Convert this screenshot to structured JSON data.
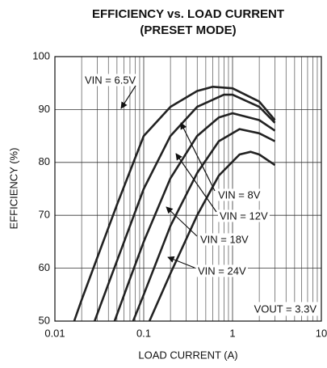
{
  "chart_data": {
    "type": "line",
    "title": "EFFICIENCY vs. LOAD CURRENT",
    "subtitle": "(PRESET MODE)",
    "x_label": "LOAD CURRENT (A)",
    "y_label": "EFFICIENCY (%)",
    "x_log": true,
    "xlim": [
      0.01,
      10
    ],
    "xticks": [
      0.01,
      0.1,
      1,
      10
    ],
    "ylim": [
      50,
      100
    ],
    "yticks": [
      50,
      60,
      70,
      80,
      90,
      100
    ],
    "grid": true,
    "series": [
      {
        "name": "VIN = 6.5V",
        "color": "#222222",
        "x": [
          0.0165,
          0.02,
          0.03,
          0.05,
          0.1,
          0.2,
          0.4,
          0.6,
          1,
          2,
          3
        ],
        "values": [
          50,
          54,
          62,
          72,
          85,
          90.5,
          93.5,
          94.3,
          94,
          91.5,
          88
        ]
      },
      {
        "name": "VIN = 8V",
        "color": "#222222",
        "x": [
          0.028,
          0.04,
          0.07,
          0.1,
          0.2,
          0.4,
          0.8,
          1,
          2,
          3
        ],
        "values": [
          50,
          57,
          68,
          75,
          85,
          90.5,
          92.8,
          92.8,
          90.5,
          87.5
        ]
      },
      {
        "name": "VIN = 12V",
        "color": "#222222",
        "x": [
          0.047,
          0.07,
          0.1,
          0.2,
          0.4,
          0.7,
          1,
          2,
          3
        ],
        "values": [
          50,
          58,
          65,
          77,
          85,
          88.5,
          89.3,
          88,
          86
        ]
      },
      {
        "name": "VIN = 18V",
        "color": "#222222",
        "x": [
          0.076,
          0.1,
          0.2,
          0.4,
          0.7,
          1.2,
          2,
          3
        ],
        "values": [
          50,
          55,
          68,
          78,
          84,
          86.3,
          85.5,
          84
        ]
      },
      {
        "name": "VIN = 24V",
        "color": "#222222",
        "x": [
          0.116,
          0.2,
          0.4,
          0.7,
          1.2,
          1.6,
          2,
          3
        ],
        "values": [
          50,
          59,
          70,
          77.5,
          81.5,
          82,
          81.5,
          79.5
        ]
      }
    ],
    "annotation": "VOUT = 3.3V"
  }
}
